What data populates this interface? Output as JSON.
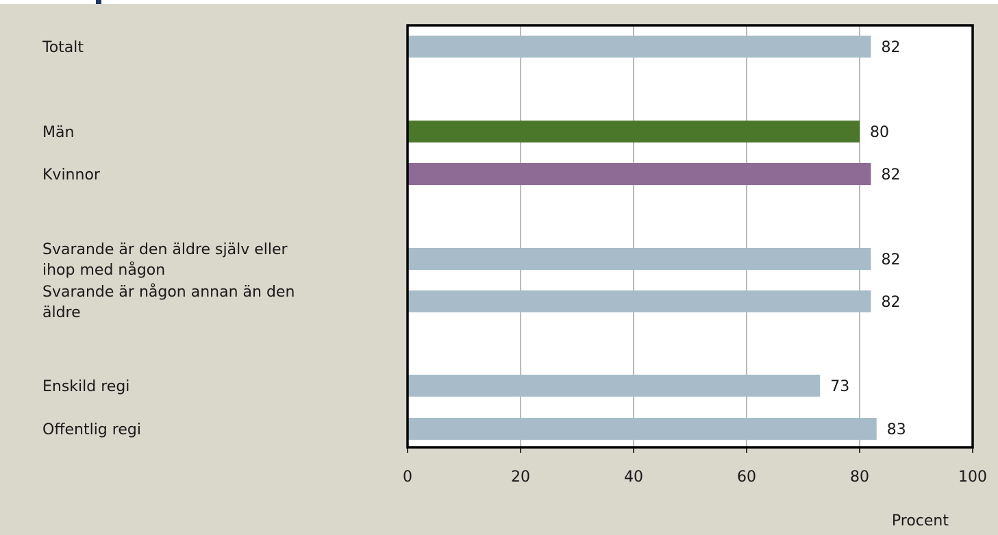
{
  "chart_data": {
    "type": "bar",
    "orientation": "horizontal",
    "categories": [
      "Totalt",
      "Män",
      "Kvinnor",
      "Svarande är den äldre själv eller ihop med någon",
      "Svarande är någon annan än den äldre",
      "Enskild regi",
      "Offentlig regi"
    ],
    "category_lines": [
      [
        "Totalt"
      ],
      [
        "Män"
      ],
      [
        "Kvinnor"
      ],
      [
        "Svarande är den äldre själv eller",
        "ihop med någon"
      ],
      [
        "Svarande är någon annan än den",
        "äldre"
      ],
      [
        "Enskild regi"
      ],
      [
        "Offentlig regi"
      ]
    ],
    "values": [
      82,
      80,
      82,
      82,
      82,
      73,
      83
    ],
    "bar_colors": [
      "#a7bcc8",
      "#4a7729",
      "#8d6b95",
      "#a7bcc8",
      "#a7bcc8",
      "#a7bcc8",
      "#a7bcc8"
    ],
    "xlim": [
      0,
      100
    ],
    "xticks": [
      0,
      20,
      40,
      60,
      80,
      100
    ],
    "xlabel": "Procent",
    "grid": true,
    "plot_background": "#ffffff",
    "panel_background": "#dad7cb"
  }
}
